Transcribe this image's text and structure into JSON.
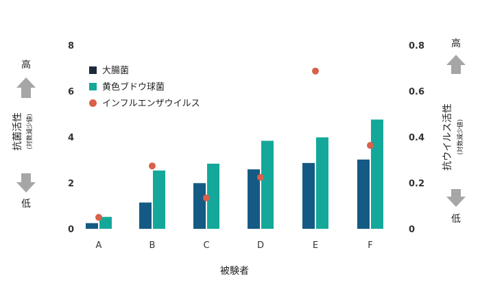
{
  "chart_data": {
    "type": "bar",
    "categories": [
      "A",
      "B",
      "C",
      "D",
      "E",
      "F"
    ],
    "xlabel": "被験者",
    "y_left": {
      "label": "抗菌活性",
      "sublabel": "(対数減少値)",
      "ylim": [
        0,
        8
      ],
      "ticks": [
        "0",
        "2",
        "4",
        "6",
        "8"
      ],
      "high_label": "高",
      "low_label": "低"
    },
    "y_right": {
      "label": "抗ウイルス活性",
      "sublabel": "(対数減少値)",
      "ylim": [
        0,
        0.8
      ],
      "ticks": [
        "0",
        "0.2",
        "0.4",
        "0.6",
        "0.8"
      ],
      "high_label": "高",
      "low_label": "低"
    },
    "series": [
      {
        "name": "大腸菌",
        "kind": "bar",
        "axis": "left",
        "color": "#155a84",
        "values": [
          0.25,
          1.15,
          2.0,
          2.6,
          2.88,
          3.03
        ]
      },
      {
        "name": "黄色ブドウ球菌",
        "kind": "bar",
        "axis": "left",
        "color": "#14a89a",
        "values": [
          0.52,
          2.55,
          2.85,
          3.85,
          4.0,
          4.78
        ]
      },
      {
        "name": "インフルエンザウイルス",
        "kind": "scatter",
        "axis": "right",
        "color": "#d9604a",
        "values": [
          0.05,
          0.275,
          0.135,
          0.225,
          0.69,
          0.365
        ]
      }
    ],
    "legend_position": "top-left",
    "grid": false
  },
  "colors": {
    "arrow": "#a6a6a6",
    "text": "#222222"
  }
}
